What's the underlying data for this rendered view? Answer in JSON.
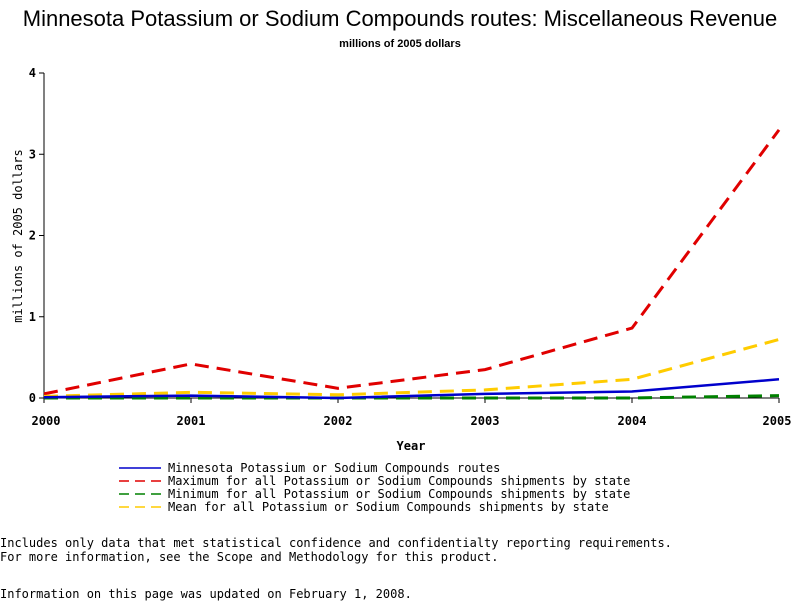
{
  "chart_data": {
    "type": "line",
    "title": "Minnesota Potassium or Sodium Compounds routes: Miscellaneous Revenue",
    "subtitle": "millions of 2005 dollars",
    "xlabel": "Year",
    "ylabel": "millions of 2005 dollars",
    "x": [
      2000,
      2001,
      2002,
      2003,
      2004,
      2005
    ],
    "x_tick_labels": [
      "2000",
      "2001",
      "2002",
      "2003",
      "2004",
      "2005"
    ],
    "ylim": [
      0,
      4
    ],
    "y_tick_labels": [
      "0",
      "1",
      "2",
      "3",
      "4"
    ],
    "grid": false,
    "legend_position": "bottom",
    "series": [
      {
        "name": "Minnesota Potassium or Sodium Compounds routes",
        "color": "#0000cc",
        "style": "solid",
        "values": [
          0.01,
          0.03,
          0.0,
          0.05,
          0.08,
          0.23
        ]
      },
      {
        "name": "Maximum for all Potassium or Sodium Compounds shipments by state",
        "color": "#e00000",
        "style": "dashed",
        "values": [
          0.05,
          0.42,
          0.12,
          0.35,
          0.86,
          3.3
        ]
      },
      {
        "name": "Minimum for all Potassium or Sodium Compounds shipments by state",
        "color": "#008000",
        "style": "dashed",
        "values": [
          0.0,
          0.0,
          0.0,
          0.0,
          0.0,
          0.03
        ]
      },
      {
        "name": "Mean for all Potassium or Sodium Compounds shipments by state",
        "color": "#ffcc00",
        "style": "dashed",
        "values": [
          0.02,
          0.07,
          0.04,
          0.1,
          0.23,
          0.72
        ]
      }
    ]
  },
  "footer": {
    "note_line1": "Includes only data that met statistical confidence and confidentialty reporting requirements.",
    "note_line2": "For more information, see the Scope and Methodology for this product.",
    "updated": "Information on this page was updated on February 1, 2008."
  }
}
